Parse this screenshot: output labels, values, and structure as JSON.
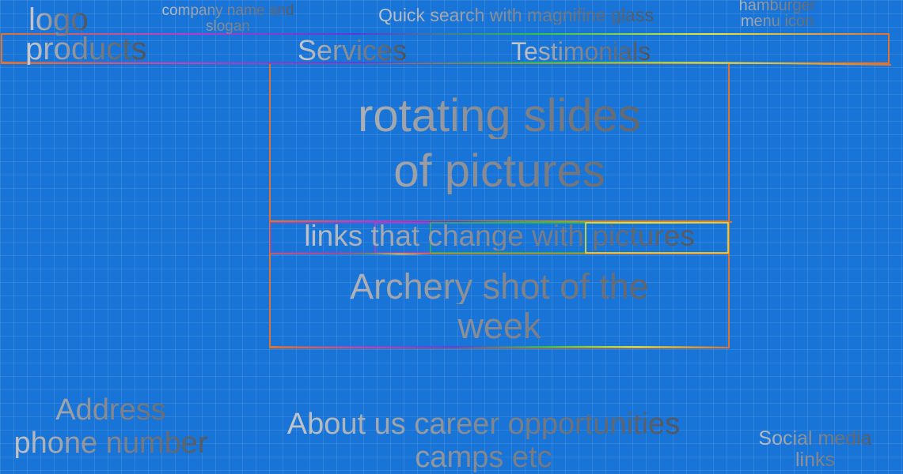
{
  "header": {
    "logo": "logo",
    "company_name_line1": "company name and",
    "company_name_line2": "slogan",
    "quick_search": "Quick search with magnifine glass",
    "hamburger_line1": "hamburger",
    "hamburger_line2": "menu icon"
  },
  "nav": {
    "items": [
      "products",
      "Services",
      "Testimonials"
    ]
  },
  "hero": {
    "line1": "rotating slides",
    "line2": "of pictures"
  },
  "links_bar": {
    "text": "links that change with pictures"
  },
  "feature": {
    "line1": "Archery shot of the",
    "line2": "week"
  },
  "footer": {
    "address": "Address",
    "phone": "phone number",
    "about_line1": "About us career opportunities",
    "about_line2": "camps etc",
    "social_line1": "Social media",
    "social_line2": "links"
  },
  "colors": {
    "background": "#1874d6",
    "wireframe_border": "#e0732e",
    "text_light": "#c9ccd1",
    "text_dark": "#4d5158"
  }
}
